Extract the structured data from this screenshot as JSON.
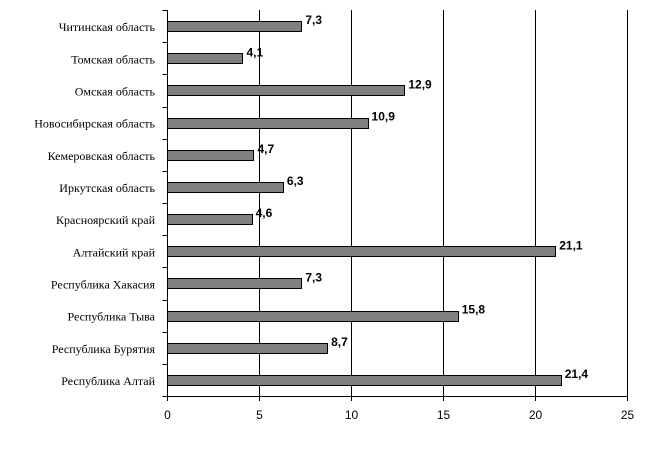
{
  "chart_data": {
    "type": "bar",
    "orientation": "horizontal",
    "title": "",
    "xlabel": "",
    "ylabel": "",
    "categories": [
      "Читинская область",
      "Томская область",
      "Омская область",
      "Новосибирская область",
      "Кемеровская область",
      "Иркутская область",
      "Красноярский край",
      "Алтайский край",
      "Республика Хакасия",
      "Республика Тыва",
      "Республика Бурятия",
      "Республика Алтай"
    ],
    "values": [
      7.3,
      4.1,
      12.9,
      10.9,
      4.7,
      6.3,
      4.6,
      21.1,
      7.3,
      15.8,
      8.7,
      21.4
    ],
    "value_labels": [
      "7,3",
      "4,1",
      "12,9",
      "10,9",
      "4,7",
      "6,3",
      "4,6",
      "21,1",
      "7,3",
      "15,8",
      "8,7",
      "21,4"
    ],
    "xlim": [
      0,
      25
    ],
    "xticks": [
      0,
      5,
      10,
      15,
      20,
      25
    ],
    "xtick_labels": [
      "0",
      "5",
      "10",
      "15",
      "20",
      "25"
    ],
    "grid": "vertical",
    "legend": "none",
    "colors": {
      "bar_fill": "#808080",
      "bar_stroke": "#000000",
      "grid": "#000000",
      "axis": "#000000"
    }
  }
}
